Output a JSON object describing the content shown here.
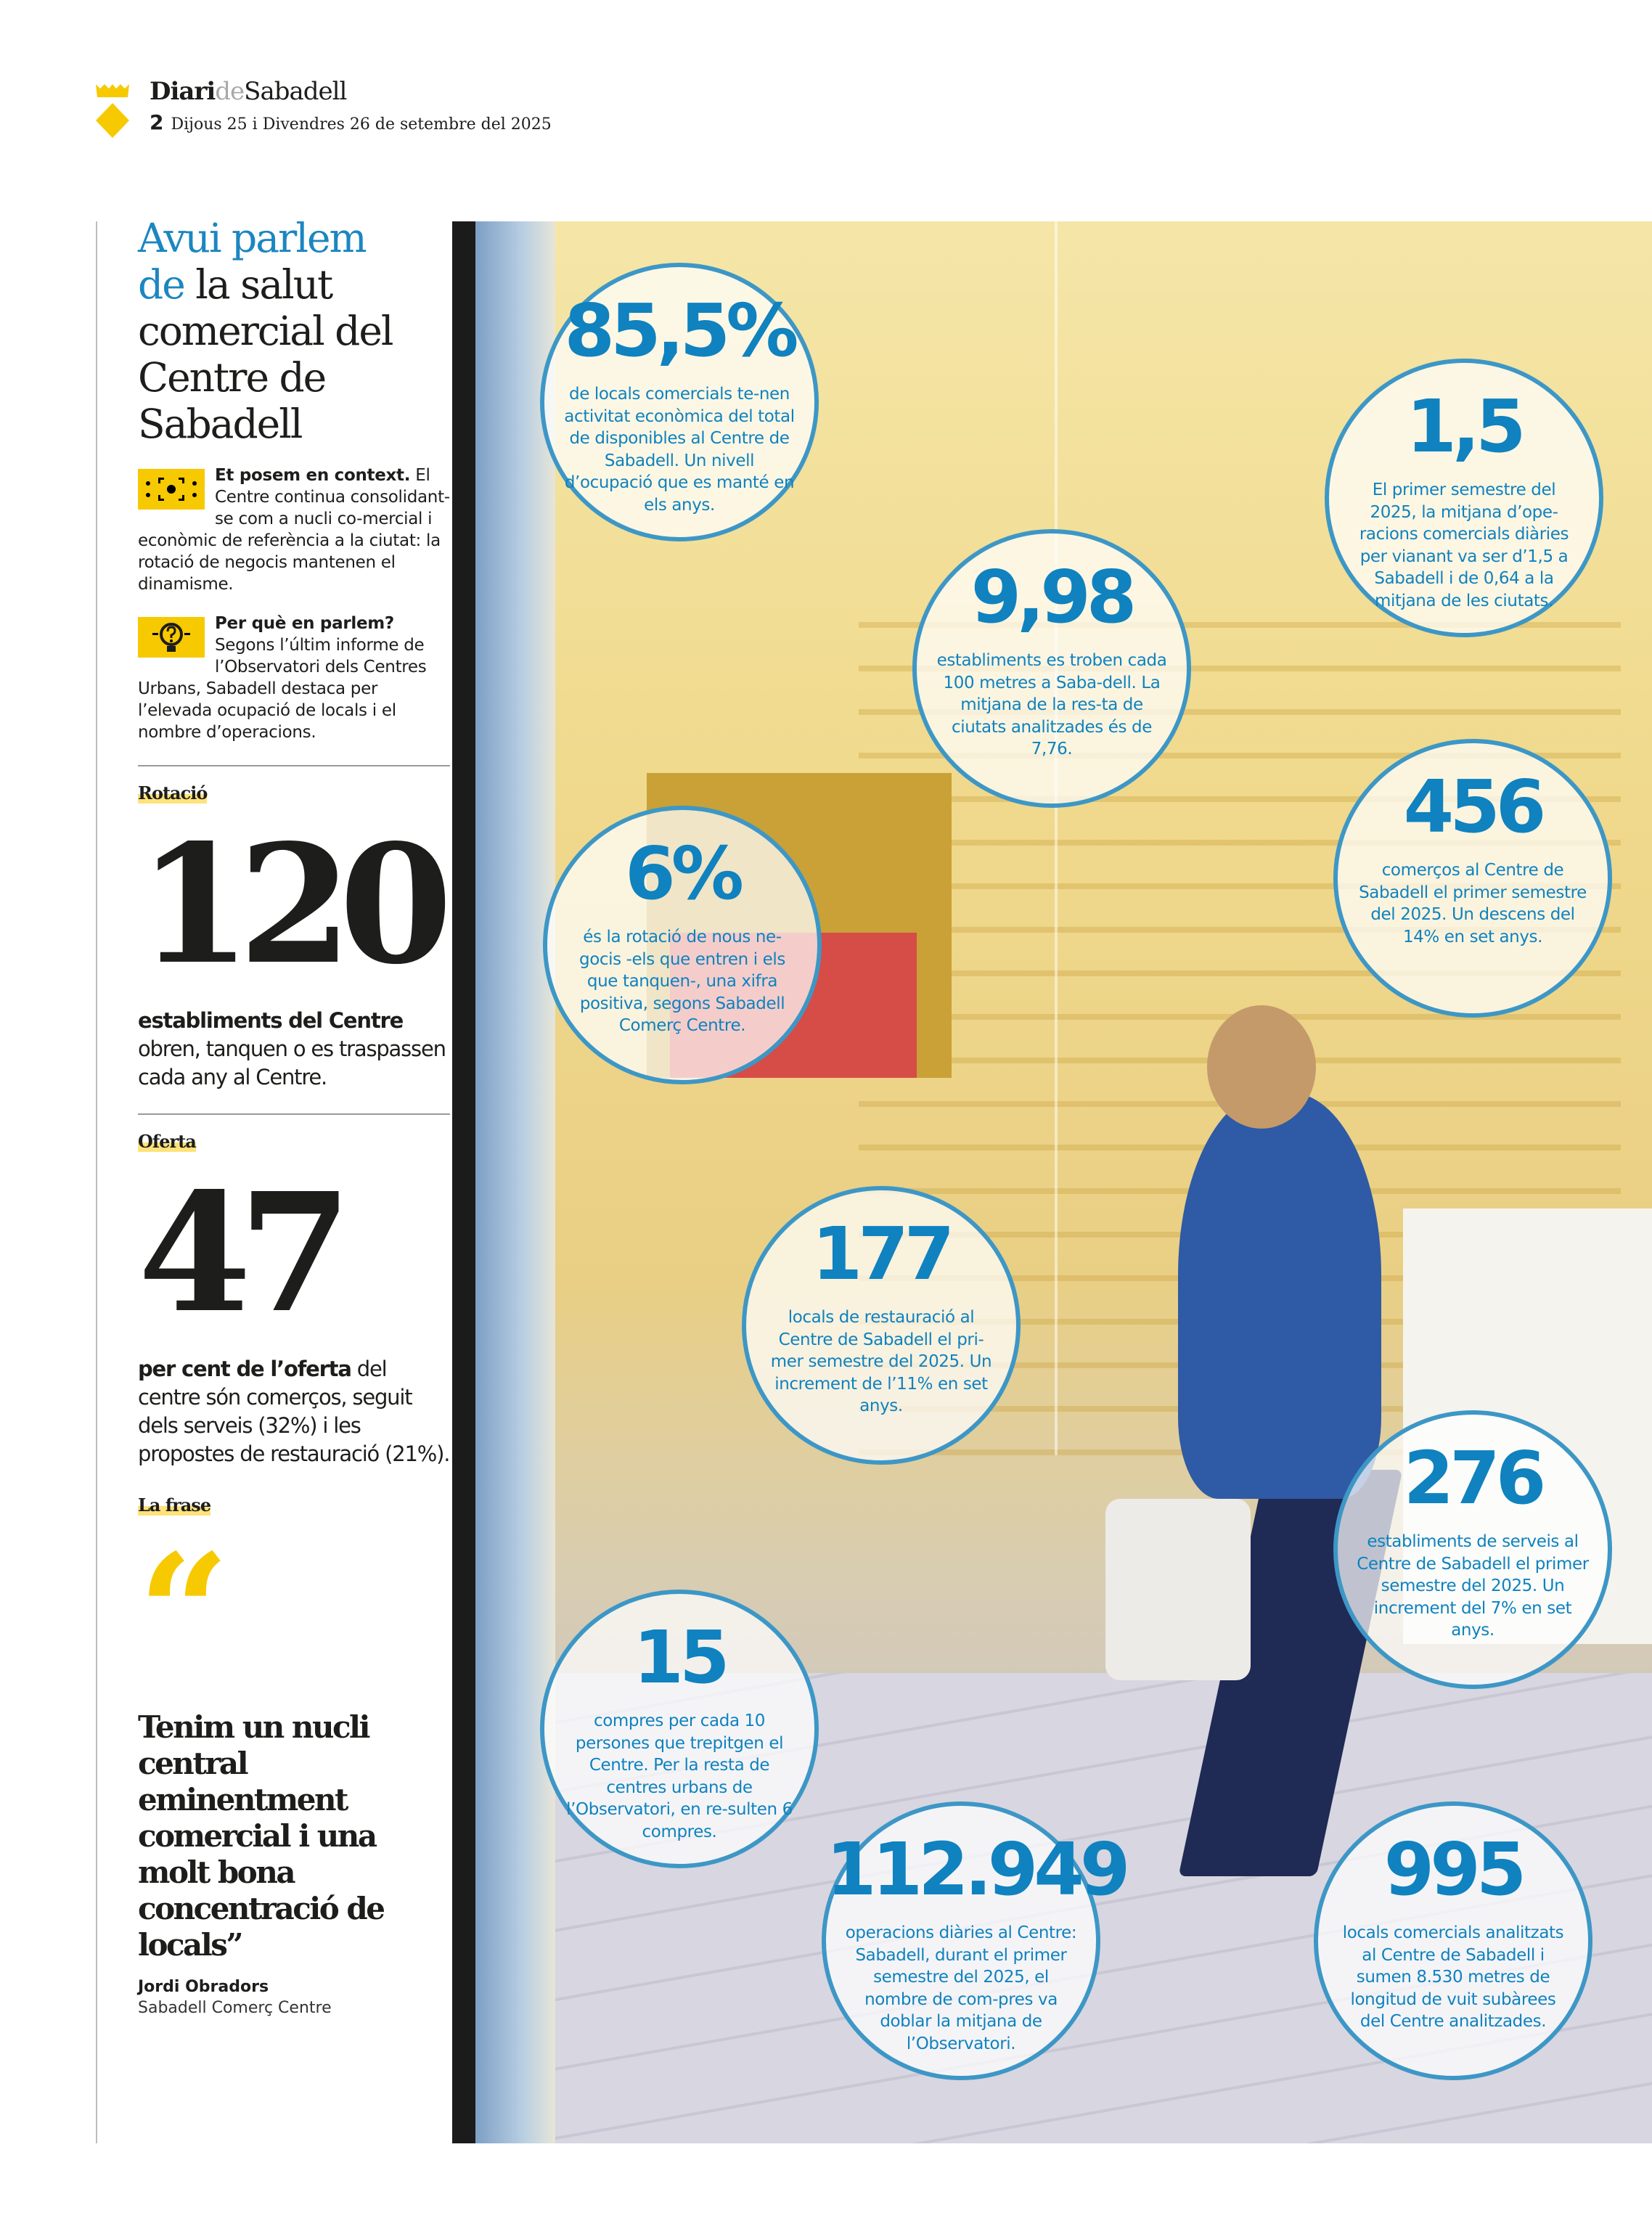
{
  "header": {
    "masthead": {
      "part1": "Diari",
      "part2": "de",
      "part3": "Sabadell"
    },
    "page_number": "2",
    "date": "Dijous 25 i Divendres 26 de setembre del 2025",
    "brand_color": "#f7c900"
  },
  "sidebar": {
    "title_blue_1": "Avui parlem",
    "title_blue_2": "de",
    "title_rest": "la salut comercial del Centre de Sabadell",
    "context": {
      "icon": "focus-target-icon",
      "heading": "Et posem en context.",
      "text": "El Centre continua consolidant-se com a nucli co-mercial i econòmic de referència a la ciutat: la rotació de negocis mantenen el dinamisme."
    },
    "why": {
      "icon": "lightbulb-question-icon",
      "heading": "Per què en parlem?",
      "text": "Segons l’últim informe de l’Observatori dels Centres Urbans, Sabadell destaca per l’elevada ocupació de locals i el nombre d’operacions."
    },
    "rotacio": {
      "kicker": "Rotació",
      "number": "120",
      "bold": "establiments del Centre",
      "text": "obren, tanquen o es traspassen cada any al Centre."
    },
    "oferta": {
      "kicker": "Oferta",
      "number": "47",
      "bold": "per cent de l’oferta",
      "text": "del centre són comerços, seguit dels serveis (32%) i les propostes de restauració (21%)."
    },
    "frase": {
      "kicker": "La frase",
      "mark": "“",
      "quote": "Tenim un nucli central eminentment comercial i una molt bona concentració de locals”",
      "author": "Jordi Obradors",
      "org": "Sabadell Comerç Centre"
    }
  },
  "stats": [
    {
      "number": "85,5%",
      "text": "de locals comercials te-nen activitat econòmica del total de disponibles al Centre de Sabadell. Un nivell d’ocupació que es manté en els anys."
    },
    {
      "number": "1,5",
      "text": "El primer semestre del 2025, la mitjana d’ope-racions comercials diàries per vianant va ser d’1,5 a Sabadell i de 0,64 a la mitjana de les ciutats."
    },
    {
      "number": "9,98",
      "text": "establiments es troben cada 100 metres a Saba-dell. La mitjana de la res-ta de ciutats analitzades és de 7,76."
    },
    {
      "number": "6%",
      "text": "és la rotació de nous ne-gocis -els que entren i els que tanquen-, una xifra positiva, segons Sabadell Comerç Centre."
    },
    {
      "number": "456",
      "text": "comerços al Centre de Sabadell el primer semestre del 2025. Un descens del 14% en set anys."
    },
    {
      "number": "177",
      "text": "locals de restauració al Centre de Sabadell el pri-mer semestre del 2025. Un increment de l’11% en set anys."
    },
    {
      "number": "276",
      "text": "establiments de serveis al Centre de Sabadell el primer semestre del 2025. Un increment del 7% en set anys."
    },
    {
      "number": "15",
      "text": "compres per cada 10 persones que trepitgen el Centre. Per la resta de centres urbans de l’Observatori, en re-sulten 6 compres."
    },
    {
      "number": "112.949",
      "text": "operacions diàries al Centre: Sabadell, durant el primer semestre del 2025, el nombre de com-pres va doblar la mitjana de l’Observatori."
    },
    {
      "number": "995",
      "text": "locals comercials analitzats al Centre de Sabadell i sumen 8.530 metres de longitud de vuit subàrees del Centre analitzades."
    }
  ],
  "colors": {
    "accent_blue": "#1c86c0",
    "circle_border": "#3d97c6",
    "highlight_yellow": "#f7c900"
  }
}
